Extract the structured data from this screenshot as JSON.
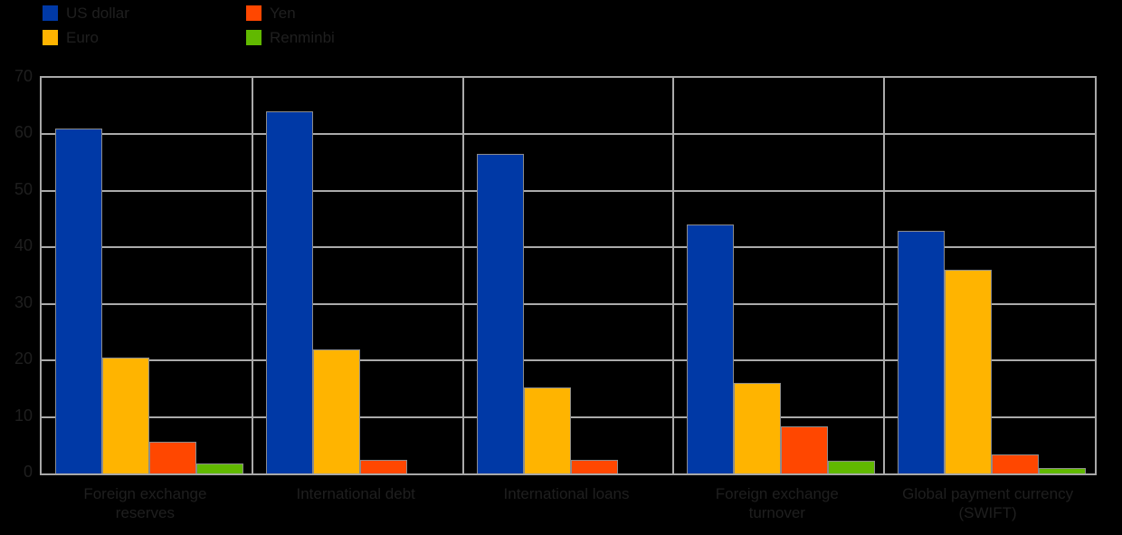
{
  "chart_data": {
    "type": "bar",
    "title": "",
    "xlabel": "",
    "ylabel": "",
    "ylim": [
      0,
      70
    ],
    "yticks": [
      0,
      10,
      20,
      30,
      40,
      50,
      60,
      70
    ],
    "grid": true,
    "legend_position": "top-left",
    "categories": [
      "Foreign exchange\nreserves",
      "International debt",
      "International loans",
      "Foreign exchange\nturnover",
      "Global payment currency\n(SWIFT)"
    ],
    "series": [
      {
        "name": "US dollar",
        "color": "#0039A6",
        "values": [
          61,
          64,
          56.5,
          44,
          43
        ]
      },
      {
        "name": "Euro",
        "color": "#FFB400",
        "values": [
          20.5,
          22,
          15.2,
          16,
          36
        ]
      },
      {
        "name": "Yen",
        "color": "#FF4700",
        "values": [
          5.6,
          2.4,
          2.4,
          8.4,
          3.3
        ]
      },
      {
        "name": "Renminbi",
        "color": "#61B900",
        "values": [
          1.8,
          0,
          0,
          2.2,
          1
        ]
      }
    ]
  },
  "colors": {
    "background": "#000000",
    "gridline": "#ABABAB",
    "plot_border": "#A8A8A8",
    "bar_border": "#8C8C8C",
    "text": "#1F1F1F"
  }
}
